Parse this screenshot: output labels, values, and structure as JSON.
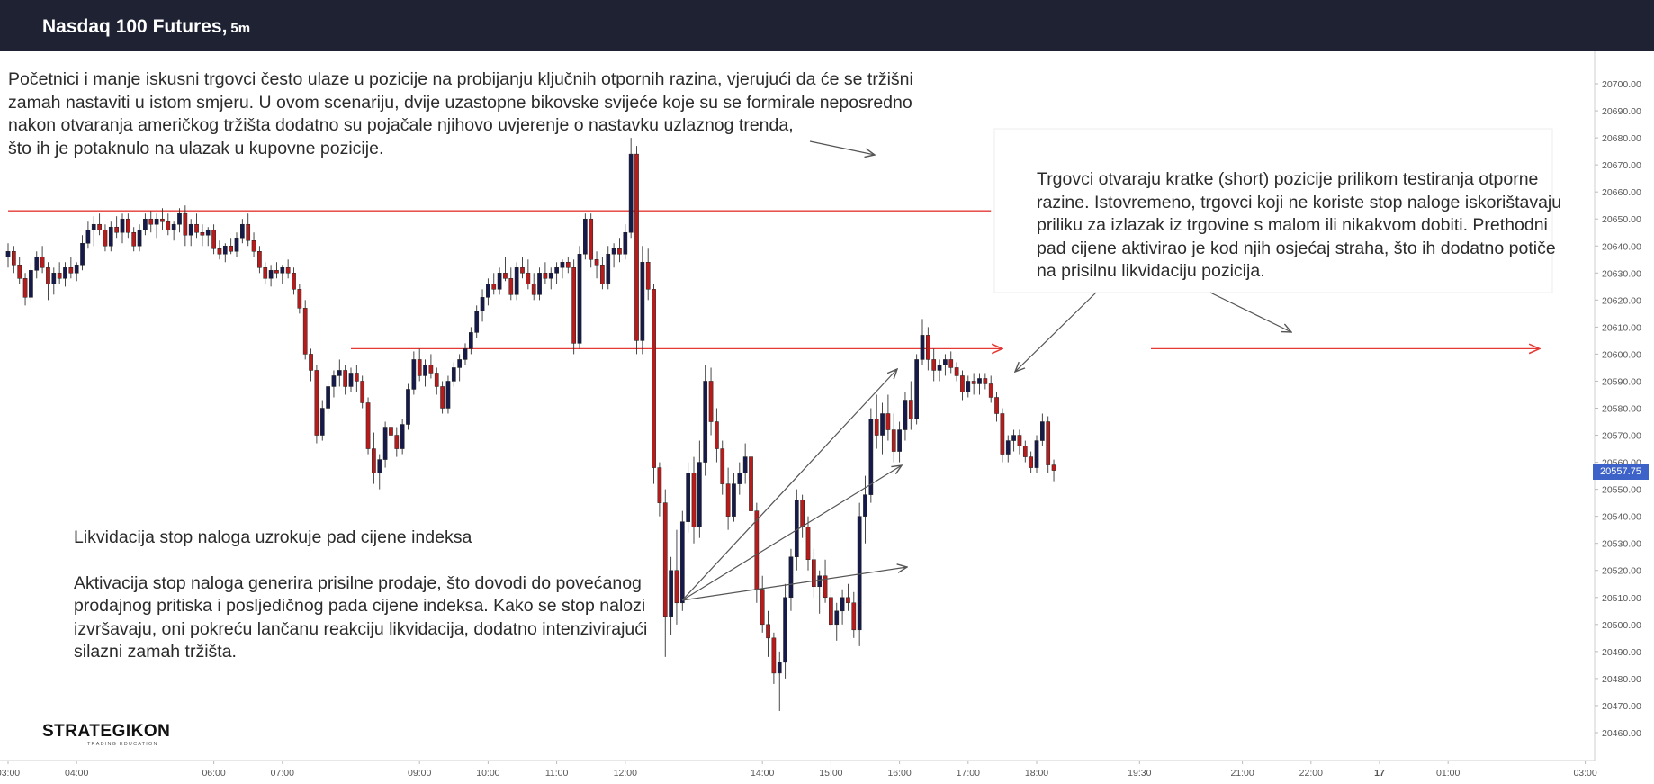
{
  "header": {
    "title": "Nasdaq 100 Futures,",
    "timeframe": "5m",
    "background": "#1e2233"
  },
  "annotations": {
    "top_left": [
      "Početnici i manje iskusni trgovci često ulaze u pozicije na probijanju ključnih otpornih razina, vjerujući da će se tržišni",
      "zamah nastaviti u istom smjeru. U ovom scenariju, dvije uzastopne bikovske svijeće koje su se formirale neposredno",
      "nakon otvaranja američkog tržišta dodatno su pojačale njihovo uvjerenje o nastavku uzlaznog trenda,",
      "što ih je potaknulo na ulazak u kupovne pozicije."
    ],
    "top_right": [
      "Trgovci otvaraju kratke (short) pozicije prilikom testiranja otporne",
      "razine. Istovremeno, trgovci koji ne koriste stop naloge iskorištavaju",
      "priliku za izlazak iz trgovine s malom ili nikakvom dobiti. Prethodni",
      "pad cijene aktivirao je kod njih osjećaj straha, što ih dodatno potiče",
      "na prisilnu likvidaciju pozicija."
    ],
    "bottom_left_title": "Likvidacija stop naloga uzrokuje pad cijene indeksa",
    "bottom_left": [
      "Aktivacija stop naloga generira prisilne prodaje, što dovodi do povećanog",
      "prodajnog pritiska i posljedičnog pada cijene indeksa. Kako se stop nalozi",
      "izvršavaju, oni pokreću lančanu reakciju likvidacija, dodatno intenzivirajući",
      "silazni zamah tržišta."
    ]
  },
  "logo": {
    "name": "STRATEGIKON",
    "tagline": "TRADING EDUCATION"
  },
  "last_price": "20557.75",
  "colors": {
    "bull": "#161a4a",
    "bear": "#b71c1c",
    "level_line": "#e53935",
    "price_tag": "#3d63c9"
  },
  "chart_data": {
    "type": "candlestick",
    "symbol": "Nasdaq 100 Futures",
    "timeframe": "5m",
    "y_range": [
      20455,
      20705
    ],
    "y_ticks": [
      "20700.00",
      "20690.00",
      "20680.00",
      "20670.00",
      "20660.00",
      "20650.00",
      "20640.00",
      "20630.00",
      "20620.00",
      "20610.00",
      "20600.00",
      "20590.00",
      "20580.00",
      "20570.00",
      "20560.00",
      "20550.00",
      "20540.00",
      "20530.00",
      "20520.00",
      "20510.00",
      "20500.00",
      "20490.00",
      "20480.00",
      "20470.00",
      "20460.00"
    ],
    "x_ticks": [
      {
        "label": "03:00",
        "bar": 0
      },
      {
        "label": "04:00",
        "bar": 12
      },
      {
        "label": "06:00",
        "bar": 36
      },
      {
        "label": "07:00",
        "bar": 48
      },
      {
        "label": "09:00",
        "bar": 72
      },
      {
        "label": "10:00",
        "bar": 84
      },
      {
        "label": "11:00",
        "bar": 96
      },
      {
        "label": "12:00",
        "bar": 108
      },
      {
        "label": "14:00",
        "bar": 132
      },
      {
        "label": "15:00",
        "bar": 144
      },
      {
        "label": "16:00",
        "bar": 156
      },
      {
        "label": "17:00",
        "bar": 168
      },
      {
        "label": "18:00",
        "bar": 180
      },
      {
        "label": "19:30",
        "bar": 198
      },
      {
        "label": "21:00",
        "bar": 216
      },
      {
        "label": "22:00",
        "bar": 228
      },
      {
        "label": "17",
        "bar": 240
      },
      {
        "label": "01:00",
        "bar": 252
      },
      {
        "label": "03:00",
        "bar": 276
      }
    ],
    "levels": [
      {
        "price": 20653,
        "from_bar": 0,
        "to_bar": 172,
        "arrow": false
      },
      {
        "price": 20602,
        "from_bar": 60,
        "to_bar": 174,
        "arrow": true
      },
      {
        "price": 20602,
        "from_bar": 200,
        "to_bar": 268,
        "arrow": true
      }
    ],
    "bars": [
      [
        20636,
        20641,
        20632,
        20638
      ],
      [
        20638,
        20640,
        20630,
        20633
      ],
      [
        20633,
        20636,
        20626,
        20628
      ],
      [
        20628,
        20630,
        20618,
        20621
      ],
      [
        20621,
        20634,
        20619,
        20631
      ],
      [
        20631,
        20638,
        20628,
        20636
      ],
      [
        20636,
        20640,
        20630,
        20632
      ],
      [
        20632,
        20634,
        20620,
        20626
      ],
      [
        20626,
        20632,
        20622,
        20630
      ],
      [
        20630,
        20634,
        20626,
        20628
      ],
      [
        20628,
        20634,
        20625,
        20632
      ],
      [
        20632,
        20636,
        20628,
        20630
      ],
      [
        20630,
        20634,
        20627,
        20633
      ],
      [
        20633,
        20644,
        20631,
        20641
      ],
      [
        20641,
        20649,
        20639,
        20646
      ],
      [
        20646,
        20651,
        20640,
        20648
      ],
      [
        20648,
        20652,
        20644,
        20646
      ],
      [
        20646,
        20648,
        20638,
        20640
      ],
      [
        20640,
        20649,
        20638,
        20647
      ],
      [
        20647,
        20651,
        20643,
        20645
      ],
      [
        20645,
        20652,
        20641,
        20650
      ],
      [
        20650,
        20652,
        20643,
        20645
      ],
      [
        20645,
        20647,
        20638,
        20640
      ],
      [
        20640,
        20648,
        20638,
        20646
      ],
      [
        20646,
        20652,
        20644,
        20650
      ],
      [
        20650,
        20653,
        20645,
        20648
      ],
      [
        20648,
        20652,
        20643,
        20650
      ],
      [
        20650,
        20654,
        20646,
        20649
      ],
      [
        20649,
        20652,
        20644,
        20646
      ],
      [
        20646,
        20649,
        20642,
        20648
      ],
      [
        20648,
        20654,
        20645,
        20652
      ],
      [
        20652,
        20655,
        20640,
        20644
      ],
      [
        20644,
        20650,
        20640,
        20648
      ],
      [
        20648,
        20652,
        20643,
        20645
      ],
      [
        20645,
        20648,
        20640,
        20644
      ],
      [
        20644,
        20647,
        20640,
        20646
      ],
      [
        20646,
        20648,
        20637,
        20639
      ],
      [
        20639,
        20642,
        20635,
        20637
      ],
      [
        20637,
        20641,
        20634,
        20640
      ],
      [
        20640,
        20643,
        20637,
        20638
      ],
      [
        20638,
        20645,
        20636,
        20643
      ],
      [
        20643,
        20650,
        20641,
        20648
      ],
      [
        20648,
        20652,
        20640,
        20642
      ],
      [
        20642,
        20645,
        20636,
        20638
      ],
      [
        20638,
        20640,
        20630,
        20632
      ],
      [
        20632,
        20634,
        20626,
        20628
      ],
      [
        20628,
        20633,
        20625,
        20631
      ],
      [
        20631,
        20634,
        20628,
        20630
      ],
      [
        20630,
        20633,
        20626,
        20632
      ],
      [
        20632,
        20635,
        20628,
        20630
      ],
      [
        20630,
        20632,
        20622,
        20624
      ],
      [
        20624,
        20626,
        20615,
        20617
      ],
      [
        20617,
        20620,
        20598,
        20600
      ],
      [
        20600,
        20602,
        20590,
        20594
      ],
      [
        20594,
        20596,
        20567,
        20570
      ],
      [
        20570,
        20583,
        20568,
        20580
      ],
      [
        20580,
        20590,
        20578,
        20588
      ],
      [
        20588,
        20594,
        20584,
        20592
      ],
      [
        20592,
        20598,
        20588,
        20594
      ],
      [
        20594,
        20596,
        20585,
        20588
      ],
      [
        20588,
        20595,
        20586,
        20593
      ],
      [
        20593,
        20596,
        20586,
        20590
      ],
      [
        20590,
        20592,
        20580,
        20582
      ],
      [
        20582,
        20584,
        20563,
        20565
      ],
      [
        20565,
        20571,
        20552,
        20556
      ],
      [
        20556,
        20563,
        20550,
        20561
      ],
      [
        20561,
        20575,
        20558,
        20573
      ],
      [
        20573,
        20580,
        20567,
        20570
      ],
      [
        20570,
        20573,
        20562,
        20565
      ],
      [
        20565,
        20576,
        20563,
        20574
      ],
      [
        20574,
        20589,
        20572,
        20587
      ],
      [
        20587,
        20601,
        20585,
        20598
      ],
      [
        20598,
        20602,
        20590,
        20592
      ],
      [
        20592,
        20598,
        20588,
        20596
      ],
      [
        20596,
        20600,
        20591,
        20593
      ],
      [
        20593,
        20595,
        20585,
        20588
      ],
      [
        20588,
        20590,
        20578,
        20580
      ],
      [
        20580,
        20592,
        20578,
        20590
      ],
      [
        20590,
        20597,
        20588,
        20595
      ],
      [
        20595,
        20600,
        20590,
        20598
      ],
      [
        20598,
        20604,
        20596,
        20602
      ],
      [
        20602,
        20610,
        20600,
        20608
      ],
      [
        20608,
        20618,
        20606,
        20616
      ],
      [
        20616,
        20624,
        20612,
        20621
      ],
      [
        20621,
        20628,
        20618,
        20626
      ],
      [
        20626,
        20630,
        20622,
        20624
      ],
      [
        20624,
        20632,
        20622,
        20630
      ],
      [
        20630,
        20636,
        20627,
        20628
      ],
      [
        20628,
        20632,
        20620,
        20622
      ],
      [
        20622,
        20634,
        20620,
        20632
      ],
      [
        20632,
        20636,
        20628,
        20630
      ],
      [
        20630,
        20635,
        20624,
        20626
      ],
      [
        20626,
        20630,
        20620,
        20622
      ],
      [
        20622,
        20632,
        20620,
        20630
      ],
      [
        20630,
        20634,
        20626,
        20628
      ],
      [
        20628,
        20632,
        20624,
        20630
      ],
      [
        20630,
        20634,
        20626,
        20632
      ],
      [
        20632,
        20635,
        20628,
        20634
      ],
      [
        20634,
        20636,
        20630,
        20632
      ],
      [
        20632,
        20635,
        20600,
        20604
      ],
      [
        20604,
        20640,
        20602,
        20637
      ],
      [
        20637,
        20652,
        20635,
        20650
      ],
      [
        20650,
        20652,
        20632,
        20635
      ],
      [
        20635,
        20638,
        20628,
        20633
      ],
      [
        20633,
        20636,
        20624,
        20626
      ],
      [
        20626,
        20640,
        20624,
        20637
      ],
      [
        20637,
        20641,
        20632,
        20639
      ],
      [
        20639,
        20643,
        20634,
        20637
      ],
      [
        20637,
        20648,
        20635,
        20645
      ],
      [
        20645,
        20680,
        20643,
        20674
      ],
      [
        20674,
        20677,
        20600,
        20605
      ],
      [
        20605,
        20640,
        20600,
        20634
      ],
      [
        20634,
        20639,
        20620,
        20624
      ],
      [
        20624,
        20626,
        20552,
        20558
      ],
      [
        20558,
        20560,
        20540,
        20545
      ],
      [
        20545,
        20550,
        20488,
        20503
      ],
      [
        20503,
        20525,
        20496,
        20520
      ],
      [
        20520,
        20535,
        20500,
        20508
      ],
      [
        20508,
        20542,
        20505,
        20538
      ],
      [
        20538,
        20560,
        20534,
        20556
      ],
      [
        20556,
        20562,
        20530,
        20536
      ],
      [
        20536,
        20568,
        20532,
        20560
      ],
      [
        20560,
        20596,
        20555,
        20590
      ],
      [
        20590,
        20595,
        20570,
        20575
      ],
      [
        20575,
        20580,
        20560,
        20565
      ],
      [
        20565,
        20568,
        20548,
        20552
      ],
      [
        20552,
        20558,
        20535,
        20540
      ],
      [
        20540,
        20556,
        20538,
        20552
      ],
      [
        20552,
        20560,
        20548,
        20556
      ],
      [
        20556,
        20567,
        20552,
        20562
      ],
      [
        20562,
        20565,
        20540,
        20542
      ],
      [
        20542,
        20545,
        20508,
        20513
      ],
      [
        20513,
        20518,
        20497,
        20500
      ],
      [
        20500,
        20505,
        20488,
        20495
      ],
      [
        20495,
        20497,
        20478,
        20482
      ],
      [
        20482,
        20490,
        20468,
        20486
      ],
      [
        20486,
        20515,
        20480,
        20510
      ],
      [
        20510,
        20528,
        20505,
        20525
      ],
      [
        20525,
        20550,
        20520,
        20546
      ],
      [
        20546,
        20548,
        20532,
        20536
      ],
      [
        20536,
        20540,
        20520,
        20524
      ],
      [
        20524,
        20528,
        20510,
        20514
      ],
      [
        20514,
        20520,
        20504,
        20518
      ],
      [
        20518,
        20524,
        20508,
        20510
      ],
      [
        20510,
        20514,
        20498,
        20500
      ],
      [
        20500,
        20508,
        20494,
        20505
      ],
      [
        20505,
        20513,
        20500,
        20510
      ],
      [
        20510,
        20515,
        20505,
        20508
      ],
      [
        20508,
        20512,
        20495,
        20498
      ],
      [
        20498,
        20545,
        20492,
        20540
      ],
      [
        20540,
        20555,
        20530,
        20548
      ],
      [
        20548,
        20580,
        20545,
        20576
      ],
      [
        20576,
        20585,
        20565,
        20570
      ],
      [
        20570,
        20582,
        20563,
        20578
      ],
      [
        20578,
        20585,
        20568,
        20572
      ],
      [
        20572,
        20578,
        20560,
        20564
      ],
      [
        20564,
        20575,
        20560,
        20572
      ],
      [
        20572,
        20586,
        20568,
        20583
      ],
      [
        20583,
        20590,
        20572,
        20576
      ],
      [
        20576,
        20600,
        20574,
        20598
      ],
      [
        20598,
        20613,
        20596,
        20607
      ],
      [
        20607,
        20610,
        20594,
        20598
      ],
      [
        20598,
        20602,
        20590,
        20594
      ],
      [
        20594,
        20598,
        20590,
        20596
      ],
      [
        20596,
        20600,
        20592,
        20598
      ],
      [
        20598,
        20601,
        20593,
        20595
      ],
      [
        20595,
        20597,
        20590,
        20592
      ],
      [
        20592,
        20594,
        20583,
        20586
      ],
      [
        20586,
        20592,
        20584,
        20590
      ],
      [
        20590,
        20593,
        20585,
        20589
      ],
      [
        20589,
        20593,
        20585,
        20591
      ],
      [
        20591,
        20593,
        20587,
        20589
      ],
      [
        20589,
        20592,
        20582,
        20584
      ],
      [
        20584,
        20586,
        20575,
        20578
      ],
      [
        20578,
        20580,
        20560,
        20563
      ],
      [
        20563,
        20570,
        20560,
        20568
      ],
      [
        20568,
        20572,
        20564,
        20570
      ],
      [
        20570,
        20572,
        20563,
        20566
      ],
      [
        20566,
        20568,
        20560,
        20562
      ],
      [
        20562,
        20564,
        20556,
        20558
      ],
      [
        20558,
        20570,
        20556,
        20568
      ],
      [
        20568,
        20578,
        20566,
        20575
      ],
      [
        20575,
        20577,
        20556,
        20559
      ],
      [
        20559,
        20561,
        20553,
        20557
      ]
    ]
  }
}
